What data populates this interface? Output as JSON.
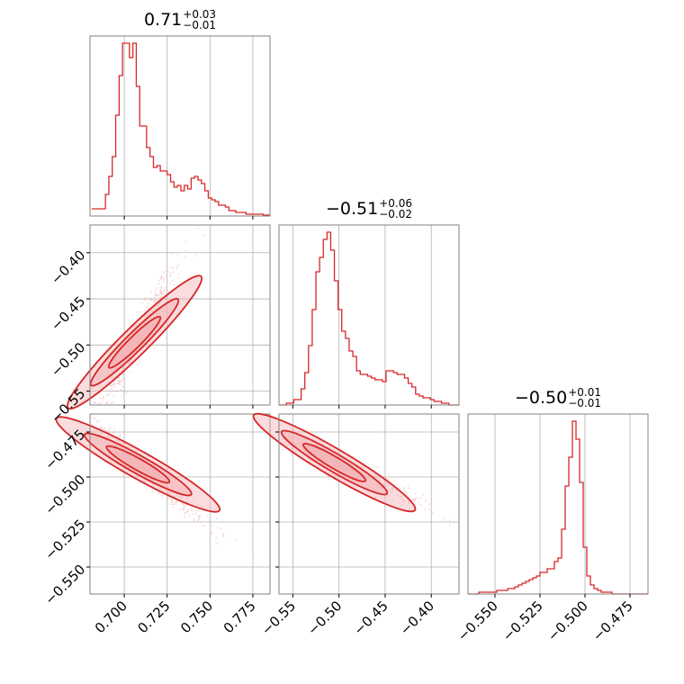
{
  "chart_data": {
    "type": "corner",
    "title": "",
    "color": "#d62728",
    "fill_color": "#f4b2b5",
    "grid": true,
    "parameters": [
      {
        "title_value": "0.71",
        "err_plus": "+0.03",
        "err_minus": "−0.01",
        "range": [
          0.68,
          0.785
        ],
        "ticks": [
          "0.700",
          "0.725",
          "0.750",
          "0.775"
        ],
        "tick_values": [
          0.7,
          0.725,
          0.75,
          0.775
        ]
      },
      {
        "title_value": "−0.51",
        "err_plus": "+0.06",
        "err_minus": "−0.02",
        "range": [
          -0.565,
          -0.37
        ],
        "ticks": [
          "−0.55",
          "−0.50",
          "−0.45",
          "−0.40"
        ],
        "tick_values": [
          -0.55,
          -0.5,
          -0.45,
          -0.4
        ]
      },
      {
        "title_value": "−0.50",
        "err_plus": "+0.01",
        "err_minus": "−0.01",
        "range": [
          -0.565,
          -0.465
        ],
        "ticks": [
          "−0.550",
          "−0.525",
          "−0.500",
          "−0.475"
        ],
        "tick_values": [
          -0.55,
          -0.525,
          -0.5,
          -0.475
        ]
      }
    ],
    "histograms": [
      {
        "bins_from": 0.681,
        "bin_width": 0.002,
        "counts": [
          0.04,
          0.04,
          0.04,
          0.04,
          0.12,
          0.22,
          0.33,
          0.56,
          0.78,
          0.96,
          0.96,
          0.88,
          0.96,
          0.72,
          0.5,
          0.5,
          0.38,
          0.33,
          0.27,
          0.28,
          0.25,
          0.25,
          0.23,
          0.19,
          0.16,
          0.17,
          0.14,
          0.17,
          0.15,
          0.21,
          0.22,
          0.2,
          0.18,
          0.14,
          0.1,
          0.09,
          0.08,
          0.06,
          0.06,
          0.05,
          0.03,
          0.03,
          0.02,
          0.02,
          0.02,
          0.01,
          0.01,
          0.01,
          0.01,
          0.01,
          0.005,
          0.005
        ]
      },
      {
        "bins_from": -0.565,
        "bin_width": 0.004,
        "counts": [
          0.0,
          0.0,
          0.01,
          0.01,
          0.03,
          0.03,
          0.09,
          0.18,
          0.33,
          0.53,
          0.74,
          0.82,
          0.92,
          0.96,
          0.86,
          0.69,
          0.53,
          0.41,
          0.37,
          0.3,
          0.27,
          0.19,
          0.17,
          0.17,
          0.16,
          0.15,
          0.14,
          0.14,
          0.13,
          0.19,
          0.19,
          0.18,
          0.17,
          0.17,
          0.15,
          0.12,
          0.1,
          0.06,
          0.05,
          0.04,
          0.04,
          0.03,
          0.02,
          0.02,
          0.01,
          0.01,
          0.0,
          0.0,
          0.0
        ]
      },
      {
        "bins_from": -0.565,
        "bin_width": 0.002,
        "counts": [
          0.0,
          0.0,
          0.0,
          0.01,
          0.01,
          0.01,
          0.01,
          0.01,
          0.02,
          0.02,
          0.02,
          0.03,
          0.03,
          0.04,
          0.05,
          0.06,
          0.07,
          0.08,
          0.09,
          0.1,
          0.12,
          0.12,
          0.14,
          0.14,
          0.18,
          0.2,
          0.36,
          0.6,
          0.76,
          0.96,
          0.86,
          0.62,
          0.26,
          0.1,
          0.05,
          0.03,
          0.02,
          0.01,
          0.01,
          0.01,
          0.0,
          0.0,
          0.0,
          0.0,
          0.0,
          0.0,
          0.0,
          0.0,
          0.0,
          0.0
        ]
      }
    ],
    "joint": [
      {
        "x_param": 0,
        "y_param": 1,
        "center": [
          0.706,
          -0.497
        ],
        "spread_major": 0.05,
        "spread_minor": 0.0025,
        "corr": 0.99
      },
      {
        "x_param": 0,
        "y_param": 2,
        "center": [
          0.708,
          -0.493
        ],
        "spread_major": 0.025,
        "spread_minor": 0.0035,
        "corr": -0.9
      },
      {
        "x_param": 1,
        "y_param": 2,
        "center": [
          -0.505,
          -0.492
        ],
        "spread_major": 0.07,
        "spread_minor": 0.003,
        "corr": -0.95
      }
    ]
  }
}
